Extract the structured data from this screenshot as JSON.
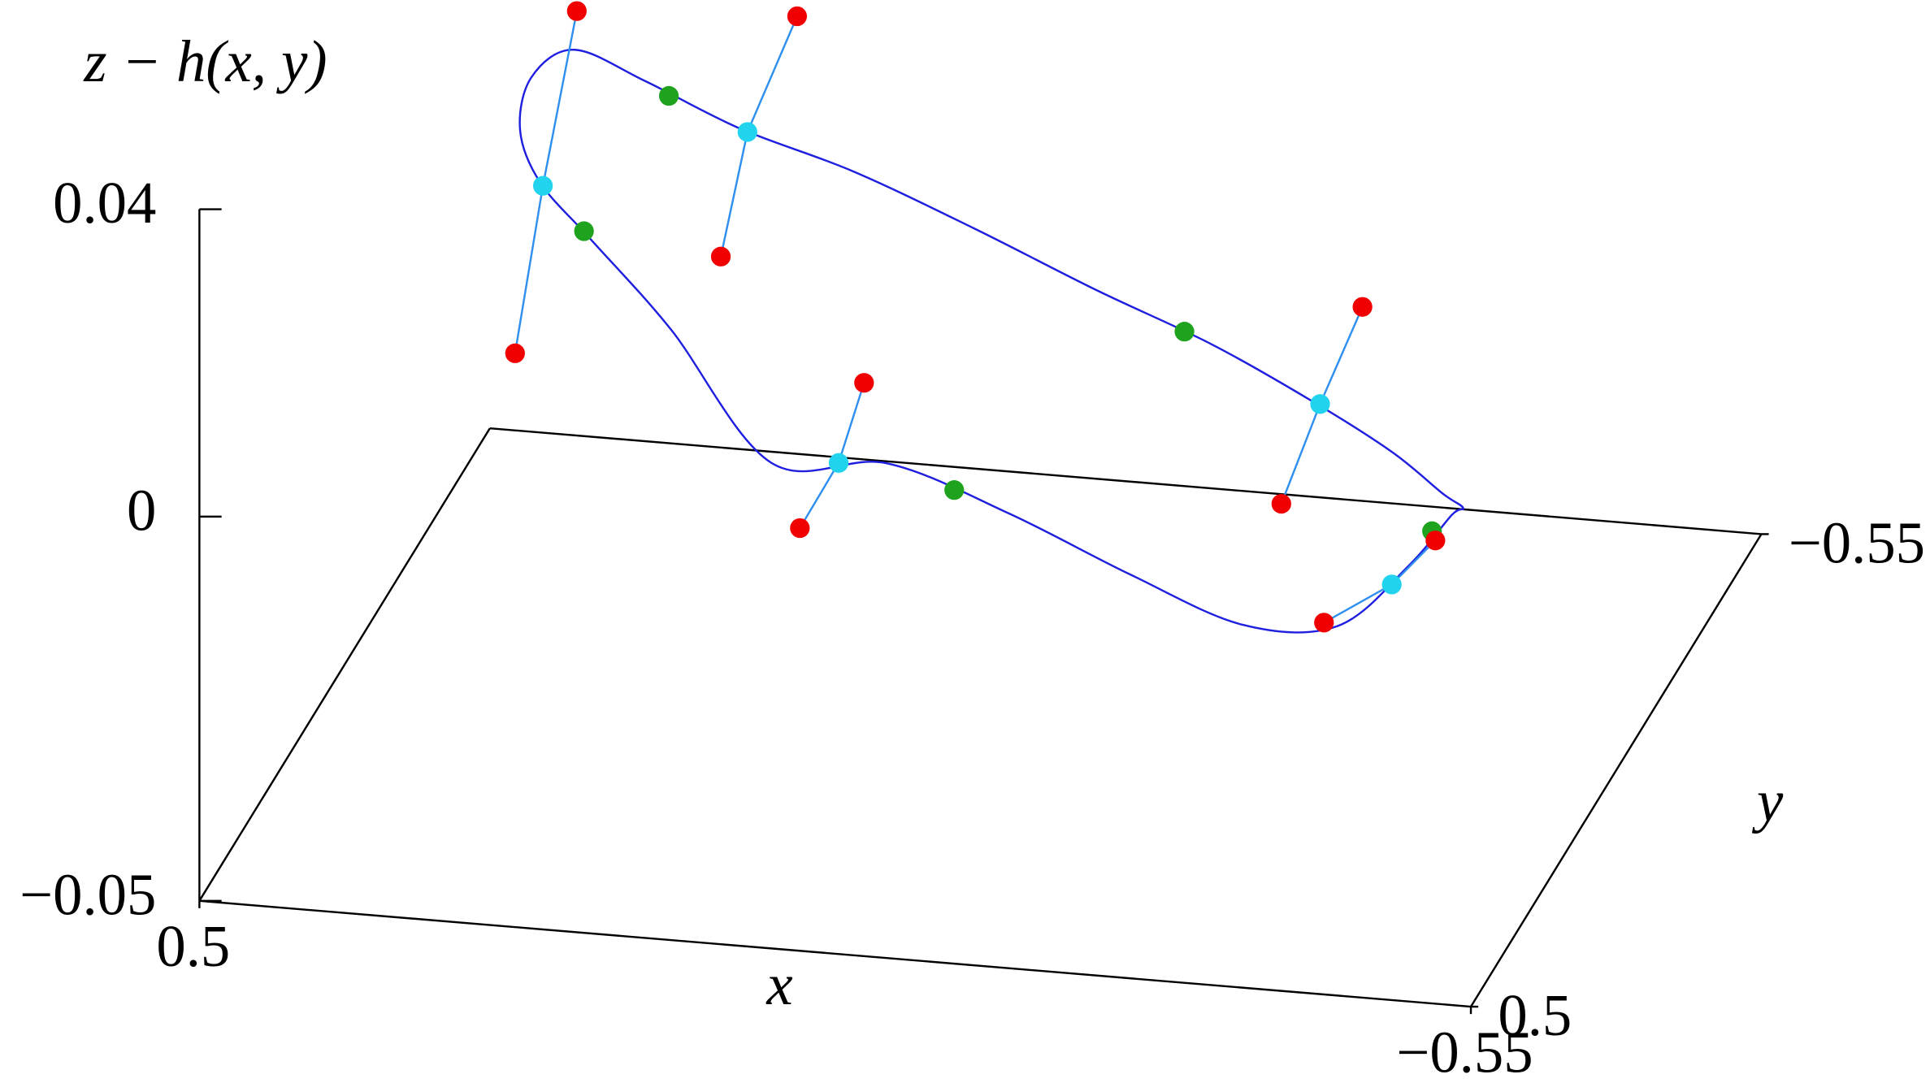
{
  "chart_data": {
    "type": "line3d",
    "zlabel": "z − h(x, y)",
    "xlabel": "x",
    "ylabel": "y",
    "xlim": [
      0.5,
      -0.55
    ],
    "ylim": [
      0.5,
      -0.55
    ],
    "zlim": [
      -0.05,
      0.04
    ],
    "xticks": [
      0.5,
      {
        "value": -0.55,
        "label": "−0.55"
      }
    ],
    "yticks": [
      0.5,
      {
        "value": -0.55,
        "label": "−0.55"
      }
    ],
    "zticks": [
      {
        "value": -0.05,
        "label": "−0.05"
      },
      0,
      0.04
    ],
    "curve": {
      "color": "#1f1fe0",
      "x": [
        0.34,
        0.327,
        0.289,
        0.229,
        0.15,
        0.058,
        -0.04,
        -0.138,
        -0.23,
        -0.309,
        -0.369,
        -0.407,
        -0.42,
        -0.407,
        -0.369,
        -0.309,
        -0.23,
        -0.138,
        -0.04,
        0.058,
        0.15,
        0.229,
        0.289,
        0.327
      ],
      "y": [
        0,
        0.098,
        0.19,
        0.269,
        0.329,
        0.367,
        0.38,
        0.367,
        0.329,
        0.269,
        0.19,
        0.098,
        0,
        -0.098,
        -0.19,
        -0.269,
        -0.329,
        -0.367,
        -0.38,
        -0.367,
        -0.329,
        -0.269,
        -0.19,
        -0.098
      ],
      "z": [
        0.03,
        0.029,
        0.028,
        0.026,
        0.019,
        0.005,
        0.007,
        0.001,
        -0.008,
        -0.017,
        -0.021,
        -0.018,
        -0.017,
        -0.022,
        -0.026,
        -0.026,
        -0.024,
        -0.02,
        -0.015,
        -0.0075,
        0.001,
        0.009,
        0.019,
        0.028
      ]
    },
    "points": {
      "color": "#1fa31f",
      "x": [
        0.237,
        0.275,
        -0.095,
        -0.114,
        -0.416
      ],
      "y": [
        0.261,
        -0.212,
        0.376,
        -0.373,
        0.054
      ],
      "z": [
        0.0266,
        0.016,
        0.004,
        -0.019,
        -0.016
      ]
    },
    "segments": {
      "line_color": "#2f8fef",
      "end_color": "#f00000",
      "mid_color": "#22d3ee",
      "items": [
        {
          "x": [
            0.258,
            0.286,
            0.309
          ],
          "y": [
            0.195,
            0.195,
            0.195
          ],
          "z": [
            0.0511,
            0.028,
            0.0059
          ]
        },
        {
          "x": [
            0.183,
            0.224,
            0.246
          ],
          "y": [
            -0.273,
            -0.273,
            -0.273
          ],
          "z": [
            0.024,
            0.0084,
            -0.0081
          ]
        },
        {
          "x": [
            -0.021,
            0.0,
            0.032
          ],
          "y": [
            0.378,
            0.378,
            0.378
          ],
          "z": [
            0.0171,
            0.0064,
            -0.0025
          ]
        },
        {
          "x": [
            -0.272,
            -0.237,
            -0.205
          ],
          "y": [
            -0.325,
            -0.325,
            -0.325
          ],
          "z": [
            -0.0109,
            -0.024,
            -0.0374
          ]
        },
        {
          "x": [
            -0.435,
            -0.399,
            -0.343
          ],
          "y": [
            0.125,
            0.125,
            0.125
          ],
          "z": [
            -0.0128,
            -0.019,
            -0.0247
          ]
        }
      ]
    }
  }
}
